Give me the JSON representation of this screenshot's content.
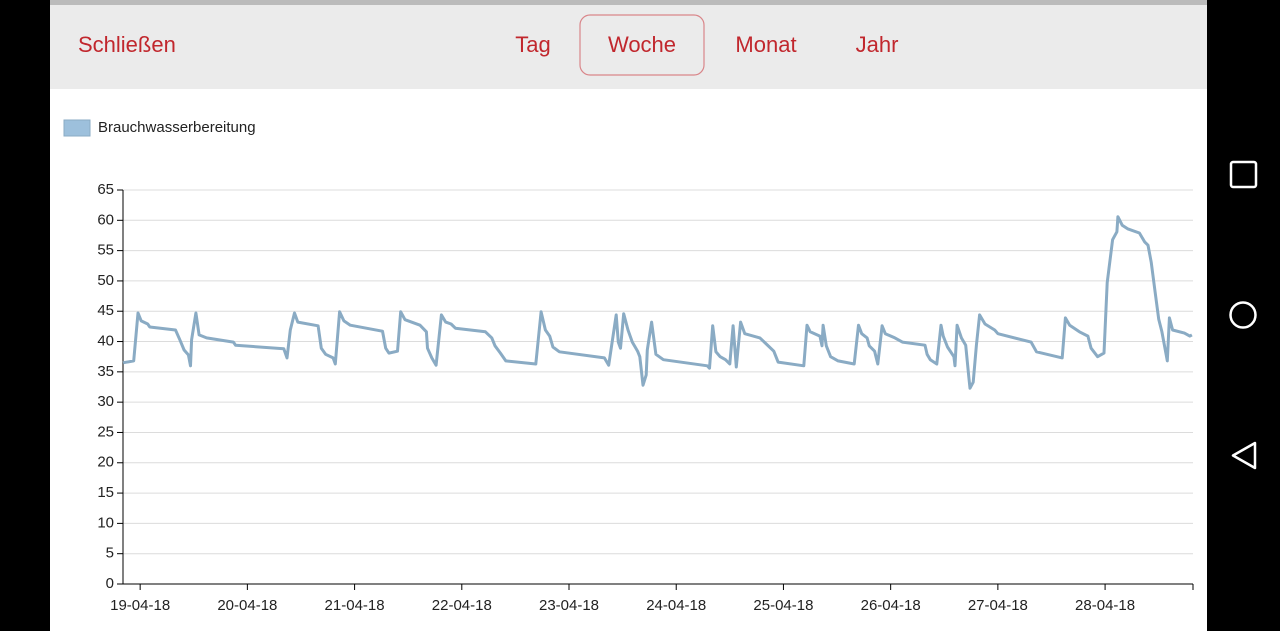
{
  "header": {
    "close": "Schließen",
    "tabs": [
      "Tag",
      "Woche",
      "Monat",
      "Jahr"
    ],
    "selected_tab": 1
  },
  "chart_data": {
    "type": "line",
    "legend": "top-left",
    "grid": true,
    "x": [
      -0.16,
      -0.06,
      -0.02,
      0.01,
      0.07,
      0.09,
      0.33,
      0.37,
      0.41,
      0.45,
      0.47,
      0.48,
      0.52,
      0.55,
      0.62,
      0.87,
      0.89,
      1.34,
      1.37,
      1.4,
      1.44,
      1.47,
      1.66,
      1.69,
      1.73,
      1.8,
      1.82,
      1.86,
      1.9,
      1.96,
      2.26,
      2.29,
      2.32,
      2.4,
      2.43,
      2.47,
      2.61,
      2.67,
      2.68,
      2.72,
      2.76,
      2.81,
      2.85,
      2.9,
      2.94,
      3.22,
      3.28,
      3.31,
      3.36,
      3.41,
      3.69,
      3.74,
      3.78,
      3.82,
      3.85,
      3.91,
      4.33,
      4.37,
      4.44,
      4.46,
      4.48,
      4.51,
      4.55,
      4.59,
      4.64,
      4.66,
      4.69,
      4.72,
      4.73,
      4.77,
      4.81,
      4.88,
      5.29,
      5.31,
      5.34,
      5.37,
      5.41,
      5.46,
      5.5,
      5.53,
      5.56,
      5.6,
      5.64,
      5.78,
      5.84,
      5.91,
      5.95,
      6.19,
      6.22,
      6.25,
      6.34,
      6.36,
      6.37,
      6.4,
      6.44,
      6.51,
      6.66,
      6.7,
      6.73,
      6.78,
      6.8,
      6.85,
      6.88,
      6.92,
      6.95,
      7.04,
      7.11,
      7.32,
      7.34,
      7.37,
      7.43,
      7.47,
      7.49,
      7.53,
      7.59,
      7.6,
      7.62,
      7.66,
      7.7,
      7.73,
      7.74,
      7.77,
      7.8,
      7.83,
      7.88,
      7.97,
      8.0,
      8.31,
      8.36,
      8.6,
      8.63,
      8.67,
      8.76,
      8.84,
      8.87,
      8.93,
      8.99,
      9.02,
      9.07,
      9.11,
      9.12,
      9.16,
      9.21,
      9.32,
      9.37,
      9.4,
      9.43,
      9.47,
      9.5,
      9.53,
      9.57,
      9.58,
      9.6,
      9.63,
      9.74,
      9.79,
      9.81
    ],
    "series": [
      {
        "name": "Brauchwasserbereitung",
        "color": "#8aabc4",
        "fill": "#9dc0dc",
        "values": [
          36.5,
          36.8,
          44.7,
          43.4,
          42.9,
          42.4,
          41.9,
          40.3,
          38.6,
          37.8,
          36,
          40.3,
          44.7,
          41.1,
          40.6,
          39.9,
          39.4,
          38.8,
          37.3,
          41.9,
          44.7,
          43.2,
          42.6,
          38.9,
          37.9,
          37.3,
          36.3,
          44.9,
          43.4,
          42.7,
          41.7,
          38.9,
          38.1,
          38.4,
          44.9,
          43.6,
          42.7,
          41.6,
          38.9,
          37.3,
          36.1,
          44.4,
          43.2,
          42.9,
          42.2,
          41.6,
          40.6,
          39.3,
          38.1,
          36.8,
          36.3,
          44.9,
          41.9,
          40.9,
          39.1,
          38.3,
          37.3,
          36.1,
          44.4,
          39.9,
          38.9,
          44.6,
          41.9,
          39.9,
          38.4,
          37.5,
          32.8,
          34.5,
          38.6,
          43.2,
          37.9,
          37,
          36,
          35.6,
          42.6,
          38.3,
          37.5,
          37,
          36.3,
          42.6,
          35.8,
          43.2,
          41.3,
          40.6,
          39.6,
          38.4,
          36.6,
          36,
          42.7,
          41.6,
          40.9,
          39.3,
          42.7,
          39.3,
          37.5,
          36.8,
          36.3,
          42.7,
          41.3,
          40.6,
          39.3,
          38.4,
          36.3,
          42.6,
          41.3,
          40.6,
          39.9,
          39.4,
          37.9,
          37,
          36.3,
          42.7,
          40.9,
          39.1,
          37.5,
          36,
          42.7,
          40.6,
          39.4,
          34,
          32.3,
          33.3,
          39.4,
          44.4,
          42.9,
          41.9,
          41.3,
          39.9,
          38.3,
          37.3,
          43.9,
          42.7,
          41.6,
          40.9,
          38.9,
          37.5,
          38.1,
          49.7,
          56.8,
          58.1,
          60.6,
          59.2,
          58.6,
          57.9,
          56.4,
          55.9,
          53.1,
          47.7,
          43.7,
          41.6,
          37.8,
          36.8,
          43.9,
          41.9,
          41.4,
          40.9,
          41.1
        ]
      }
    ],
    "xlim": [
      -0.16,
      9.82
    ],
    "xticks": [
      {
        "value": 0,
        "label": "19-04-18"
      },
      {
        "value": 1,
        "label": "20-04-18"
      },
      {
        "value": 2,
        "label": "21-04-18"
      },
      {
        "value": 3,
        "label": "22-04-18"
      },
      {
        "value": 4,
        "label": "23-04-18"
      },
      {
        "value": 5,
        "label": "24-04-18"
      },
      {
        "value": 6,
        "label": "25-04-18"
      },
      {
        "value": 7,
        "label": "26-04-18"
      },
      {
        "value": 8,
        "label": "27-04-18"
      },
      {
        "value": 9,
        "label": "28-04-18"
      }
    ],
    "ylim": [
      0,
      65
    ],
    "yticks": [
      0,
      5,
      10,
      15,
      20,
      25,
      30,
      35,
      40,
      45,
      50,
      55,
      60,
      65
    ]
  }
}
